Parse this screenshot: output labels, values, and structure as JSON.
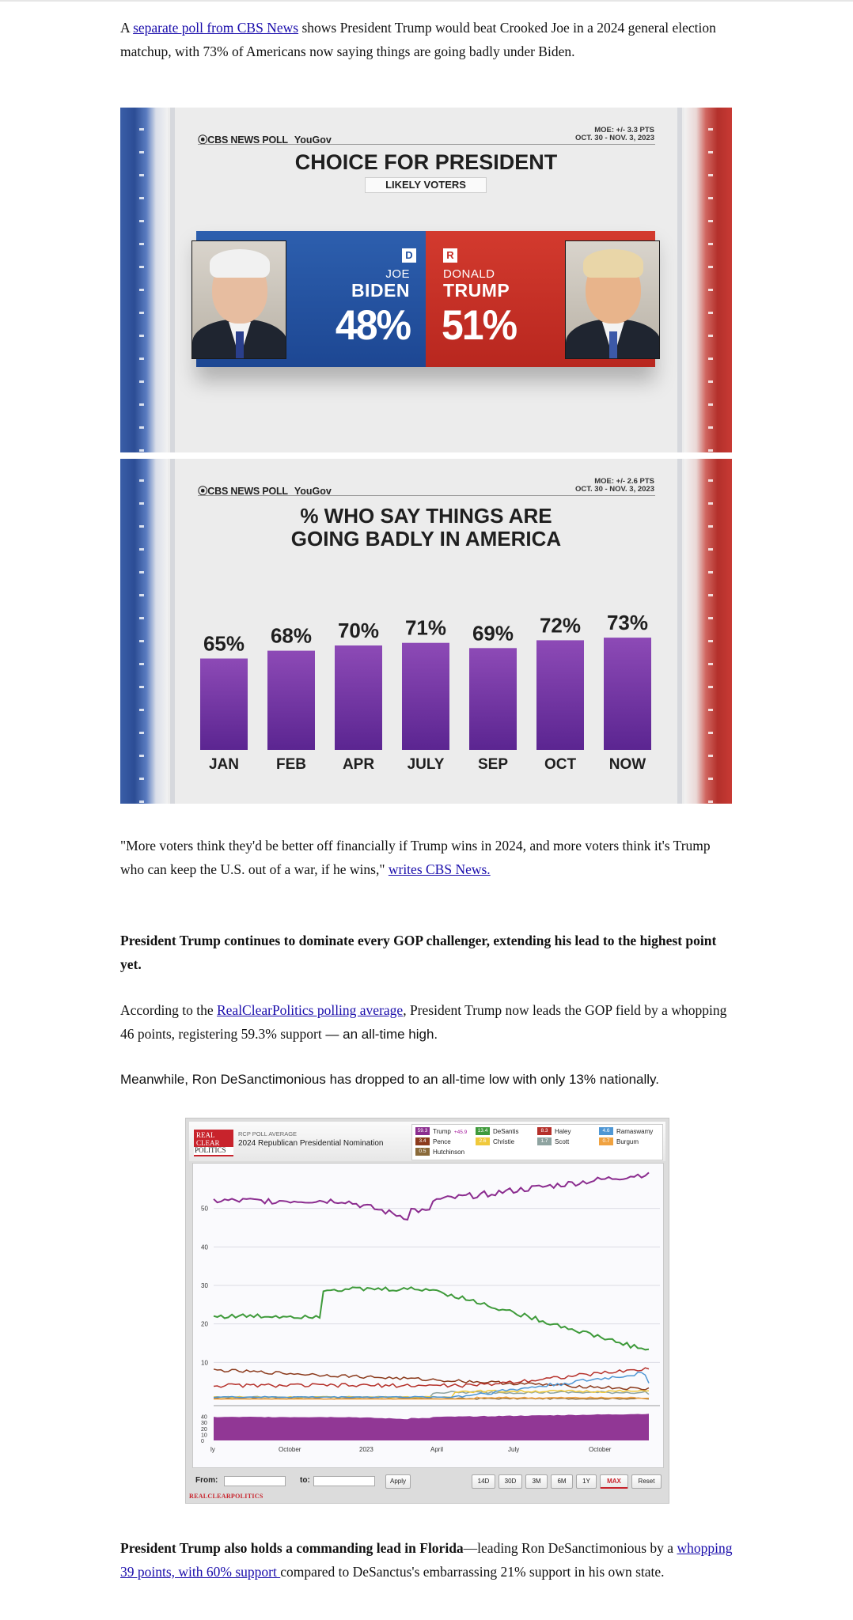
{
  "para1": {
    "prefix": "A ",
    "link": "separate poll from CBS News",
    "rest": " shows President Trump would beat Crooked Joe in a 2024 general election matchup, with 73% of Americans now saying things are going badly under Biden."
  },
  "poll1": {
    "source": "⦿CBS NEWS POLL",
    "partner": "YouGov",
    "moe": "MOE: +/- 3.3 PTS",
    "dates": "OCT. 30 - NOV. 3, 2023",
    "title": "CHOICE FOR PRESIDENT",
    "subtitle": "LIKELY VOTERS",
    "biden": {
      "party": "D",
      "first": "JOE",
      "last": "BIDEN",
      "pct": "48%"
    },
    "trump": {
      "party": "R",
      "first": "DONALD",
      "last": "TRUMP",
      "pct": "51%"
    },
    "colors": {
      "dem": "#1f4fa0",
      "rep": "#c52d24"
    }
  },
  "poll2": {
    "source": "⦿CBS NEWS POLL",
    "partner": "YouGov",
    "moe": "MOE: +/- 2.6 PTS",
    "dates": "OCT. 30 - NOV. 3, 2023",
    "title_line1": "% WHO SAY THINGS ARE",
    "title_line2": "GOING BADLY IN AMERICA"
  },
  "chart_data": {
    "type": "bar",
    "title": "% WHO SAY THINGS ARE GOING BADLY IN AMERICA",
    "categories": [
      "JAN",
      "FEB",
      "APR",
      "JULY",
      "SEP",
      "OCT",
      "NOW"
    ],
    "values": [
      65,
      68,
      70,
      71,
      69,
      72,
      73
    ],
    "labels": [
      "65%",
      "68%",
      "70%",
      "71%",
      "69%",
      "72%",
      "73%"
    ],
    "color": "#7a3ba6"
  },
  "para2": {
    "text": "\"More voters think they'd be better off financially if Trump wins in 2024, and more voters think it's Trump who can keep the U.S. out of a war, if he wins,\" ",
    "link": "writes CBS News."
  },
  "para3": {
    "bold": "President Trump continues to dominate every GOP challenger, extending his lead to the highest point yet."
  },
  "para4": {
    "prefix": "According to the ",
    "link": "RealClearPolitics polling average",
    "rest": ", President Trump now leads the GOP field by a whopping 46 points, registering 59.3% support",
    "tail": " — an all-time high."
  },
  "para5": {
    "text": "Meanwhile, Ron DeSanctimonious has dropped to an all-time low with only 13% nationally."
  },
  "rcp": {
    "logo": [
      "REAL",
      "CLEAR",
      "POLITICS"
    ],
    "subtitle": "RCP POLL AVERAGE",
    "title": "2024 Republican Presidential Nomination",
    "legend": [
      {
        "value": "59.3",
        "name": "Trump",
        "change": "+45.9",
        "color": "#8b2c8f"
      },
      {
        "value": "13.4",
        "name": "DeSantis",
        "color": "#3e9a3a"
      },
      {
        "value": "8.3",
        "name": "Haley",
        "color": "#b5302a"
      },
      {
        "value": "4.6",
        "name": "Ramaswamy",
        "color": "#4f97d4"
      },
      {
        "value": "3.4",
        "name": "Pence",
        "color": "#8b3a1c"
      },
      {
        "value": "2.6",
        "name": "Christie",
        "color": "#f0c93b"
      },
      {
        "value": "1.7",
        "name": "Scott",
        "color": "#8ea3a0"
      },
      {
        "value": "0.7",
        "name": "Burgum",
        "color": "#f0a240"
      },
      {
        "value": "0.5",
        "name": "Hutchinson",
        "color": "#8a6a3a"
      }
    ],
    "y_ticks": [
      "50",
      "40",
      "30",
      "20",
      "10"
    ],
    "mini_ticks": [
      "40",
      "30",
      "20",
      "10",
      "0"
    ],
    "x_ticks": [
      "ly",
      "October",
      "2023",
      "April",
      "July",
      "October"
    ],
    "from_label": "From:",
    "to_label": "to:",
    "apply": "Apply",
    "ranges": [
      "14D",
      "30D",
      "3M",
      "6M",
      "1Y",
      "MAX",
      "Reset"
    ],
    "watermark": "REALCLEARPOLITICS"
  },
  "para6": {
    "bold": "President Trump also holds a commanding lead in Florida",
    "mid": "—leading Ron DeSanctimonious by a ",
    "link": "whopping 39 points, with 60% support ",
    "rest": "compared to DeSanctus's embarrassing 21% support in his own state."
  }
}
